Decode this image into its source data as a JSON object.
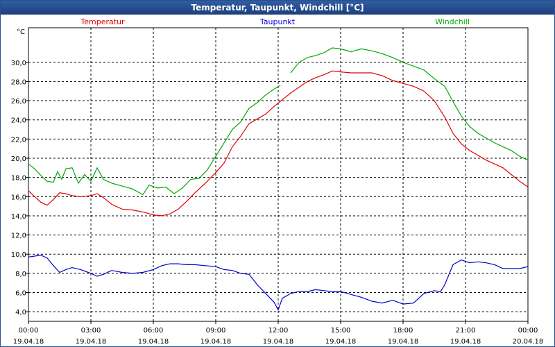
{
  "chart_data": {
    "type": "line",
    "title": "Temperatur, Taupunkt, Windchill [°C]",
    "ylabel": "°C",
    "ylim": [
      3,
      33.6
    ],
    "yticks": [
      "4,0",
      "6,0",
      "8,0",
      "10,0",
      "12,0",
      "14,0",
      "16,0",
      "18,0",
      "20,0",
      "22,0",
      "24,0",
      "26,0",
      "28,0",
      "30,0"
    ],
    "ytick_values": [
      4,
      6,
      8,
      10,
      12,
      14,
      16,
      18,
      20,
      22,
      24,
      26,
      28,
      30
    ],
    "xlim": [
      0,
      24
    ],
    "xticks": [
      {
        "time": "00:00",
        "date": "19.04.18"
      },
      {
        "time": "03:00",
        "date": "19.04.18"
      },
      {
        "time": "06:00",
        "date": "19.04.18"
      },
      {
        "time": "09:00",
        "date": "19.04.18"
      },
      {
        "time": "12:00",
        "date": "19.04.18"
      },
      {
        "time": "15:00",
        "date": "19.04.18"
      },
      {
        "time": "18:00",
        "date": "19.04.18"
      },
      {
        "time": "21:00",
        "date": "19.04.18"
      },
      {
        "time": "00:00",
        "date": "20.04.18"
      }
    ],
    "grid": true,
    "series": [
      {
        "name": "Temperatur",
        "color": "#dd0000",
        "points": [
          [
            0,
            16.6
          ],
          [
            0.3,
            16.0
          ],
          [
            0.6,
            15.4
          ],
          [
            0.9,
            15.1
          ],
          [
            1.2,
            15.7
          ],
          [
            1.5,
            16.4
          ],
          [
            1.8,
            16.3
          ],
          [
            2.1,
            16.1
          ],
          [
            2.5,
            16.0
          ],
          [
            3.0,
            16.1
          ],
          [
            3.3,
            16.3
          ],
          [
            3.6,
            15.9
          ],
          [
            4.0,
            15.2
          ],
          [
            4.5,
            14.7
          ],
          [
            5.0,
            14.6
          ],
          [
            5.5,
            14.4
          ],
          [
            6.0,
            14.1
          ],
          [
            6.4,
            14.0
          ],
          [
            6.8,
            14.2
          ],
          [
            7.2,
            14.7
          ],
          [
            7.6,
            15.5
          ],
          [
            8.0,
            16.4
          ],
          [
            8.5,
            17.4
          ],
          [
            9.0,
            18.5
          ],
          [
            9.4,
            19.5
          ],
          [
            9.8,
            21.2
          ],
          [
            10.2,
            22.3
          ],
          [
            10.6,
            23.6
          ],
          [
            11.0,
            24.1
          ],
          [
            11.4,
            24.6
          ],
          [
            11.8,
            25.4
          ],
          [
            12.2,
            26.1
          ],
          [
            12.6,
            26.8
          ],
          [
            13.0,
            27.4
          ],
          [
            13.4,
            28.0
          ],
          [
            13.8,
            28.4
          ],
          [
            14.2,
            28.7
          ],
          [
            14.6,
            29.1
          ],
          [
            15.0,
            29.0
          ],
          [
            15.5,
            28.9
          ],
          [
            16.0,
            28.9
          ],
          [
            16.5,
            28.9
          ],
          [
            17.0,
            28.6
          ],
          [
            17.5,
            28.1
          ],
          [
            18.0,
            27.8
          ],
          [
            18.5,
            27.5
          ],
          [
            19.0,
            27.0
          ],
          [
            19.5,
            26.0
          ],
          [
            20.0,
            24.3
          ],
          [
            20.4,
            22.6
          ],
          [
            20.8,
            21.5
          ],
          [
            21.2,
            20.8
          ],
          [
            21.6,
            20.3
          ],
          [
            22.0,
            19.8
          ],
          [
            22.4,
            19.4
          ],
          [
            22.8,
            19.0
          ],
          [
            23.2,
            18.3
          ],
          [
            23.6,
            17.6
          ],
          [
            24.0,
            17.0
          ]
        ]
      },
      {
        "name": "Taupunkt",
        "color": "#0000cc",
        "points": [
          [
            0,
            9.7
          ],
          [
            0.3,
            9.8
          ],
          [
            0.6,
            9.9
          ],
          [
            0.9,
            9.6
          ],
          [
            1.2,
            8.8
          ],
          [
            1.5,
            8.1
          ],
          [
            1.8,
            8.4
          ],
          [
            2.1,
            8.6
          ],
          [
            2.5,
            8.4
          ],
          [
            3.0,
            8.0
          ],
          [
            3.3,
            7.7
          ],
          [
            3.6,
            7.9
          ],
          [
            4.0,
            8.3
          ],
          [
            4.5,
            8.1
          ],
          [
            5.0,
            8.0
          ],
          [
            5.5,
            8.1
          ],
          [
            6.0,
            8.4
          ],
          [
            6.4,
            8.8
          ],
          [
            6.8,
            9.0
          ],
          [
            7.2,
            9.0
          ],
          [
            7.6,
            8.9
          ],
          [
            8.0,
            8.9
          ],
          [
            8.5,
            8.8
          ],
          [
            9.0,
            8.7
          ],
          [
            9.4,
            8.4
          ],
          [
            9.8,
            8.3
          ],
          [
            10.2,
            8.0
          ],
          [
            10.6,
            7.9
          ],
          [
            11.0,
            6.8
          ],
          [
            11.4,
            5.9
          ],
          [
            11.8,
            5.0
          ],
          [
            12.0,
            4.2
          ],
          [
            12.2,
            5.4
          ],
          [
            12.6,
            5.9
          ],
          [
            13.0,
            6.1
          ],
          [
            13.4,
            6.1
          ],
          [
            13.8,
            6.3
          ],
          [
            14.2,
            6.2
          ],
          [
            14.6,
            6.1
          ],
          [
            15.0,
            6.1
          ],
          [
            15.5,
            5.8
          ],
          [
            16.0,
            5.5
          ],
          [
            16.5,
            5.1
          ],
          [
            17.0,
            4.9
          ],
          [
            17.5,
            5.2
          ],
          [
            18.0,
            4.8
          ],
          [
            18.5,
            4.9
          ],
          [
            19.0,
            5.9
          ],
          [
            19.5,
            6.2
          ],
          [
            19.8,
            6.1
          ],
          [
            20.0,
            6.8
          ],
          [
            20.4,
            8.9
          ],
          [
            20.8,
            9.4
          ],
          [
            21.2,
            9.1
          ],
          [
            21.6,
            9.2
          ],
          [
            22.0,
            9.1
          ],
          [
            22.4,
            8.9
          ],
          [
            22.8,
            8.5
          ],
          [
            23.2,
            8.5
          ],
          [
            23.6,
            8.5
          ],
          [
            24.0,
            8.7
          ]
        ]
      },
      {
        "name": "Windchill",
        "color": "#00aa00",
        "points": [
          [
            0,
            19.4
          ],
          [
            0.3,
            18.9
          ],
          [
            0.6,
            18.2
          ],
          [
            0.9,
            17.6
          ],
          [
            1.2,
            17.5
          ],
          [
            1.4,
            18.6
          ],
          [
            1.6,
            17.8
          ],
          [
            1.8,
            18.9
          ],
          [
            2.1,
            19.0
          ],
          [
            2.4,
            17.4
          ],
          [
            2.7,
            18.3
          ],
          [
            3.0,
            17.6
          ],
          [
            3.3,
            19.0
          ],
          [
            3.6,
            17.8
          ],
          [
            4.0,
            17.4
          ],
          [
            4.5,
            17.1
          ],
          [
            5.0,
            16.8
          ],
          [
            5.5,
            16.2
          ],
          [
            5.8,
            17.2
          ],
          [
            6.2,
            16.9
          ],
          [
            6.6,
            17.0
          ],
          [
            7.0,
            16.3
          ],
          [
            7.4,
            16.9
          ],
          [
            7.8,
            17.8
          ],
          [
            8.2,
            17.9
          ],
          [
            8.6,
            18.8
          ],
          [
            9.0,
            20.2
          ],
          [
            9.4,
            21.6
          ],
          [
            9.8,
            23.0
          ],
          [
            10.2,
            23.8
          ],
          [
            10.6,
            25.2
          ],
          [
            11.0,
            25.8
          ],
          [
            11.4,
            26.6
          ],
          [
            11.8,
            27.2
          ],
          [
            12.1,
            27.6
          ],
          [
            null,
            null
          ],
          [
            12.6,
            28.9
          ],
          [
            13.0,
            30.0
          ],
          [
            13.4,
            30.5
          ],
          [
            13.8,
            30.7
          ],
          [
            14.2,
            31.0
          ],
          [
            14.6,
            31.5
          ],
          [
            15.0,
            31.4
          ],
          [
            15.5,
            31.1
          ],
          [
            16.0,
            31.4
          ],
          [
            16.5,
            31.2
          ],
          [
            17.0,
            30.9
          ],
          [
            17.5,
            30.5
          ],
          [
            18.0,
            30.0
          ],
          [
            18.5,
            29.6
          ],
          [
            19.0,
            29.2
          ],
          [
            19.5,
            28.3
          ],
          [
            20.0,
            27.5
          ],
          [
            20.4,
            25.9
          ],
          [
            20.8,
            24.4
          ],
          [
            21.2,
            23.3
          ],
          [
            21.6,
            22.6
          ],
          [
            22.0,
            22.1
          ],
          [
            22.4,
            21.6
          ],
          [
            22.8,
            21.2
          ],
          [
            23.2,
            20.8
          ],
          [
            23.6,
            20.2
          ],
          [
            24.0,
            19.8
          ]
        ]
      }
    ]
  }
}
